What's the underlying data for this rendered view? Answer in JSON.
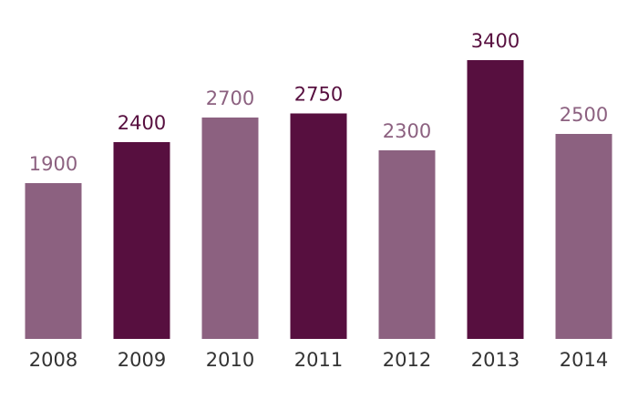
{
  "chart_data": {
    "type": "bar",
    "categories": [
      "2008",
      "2009",
      "2010",
      "2011",
      "2012",
      "2013",
      "2014"
    ],
    "values": [
      1900,
      2400,
      2700,
      2750,
      2300,
      3400,
      2500
    ],
    "colors": [
      "#8c6180",
      "#570f3f",
      "#8c6180",
      "#570f3f",
      "#8c6180",
      "#570f3f",
      "#8c6180"
    ]
  }
}
